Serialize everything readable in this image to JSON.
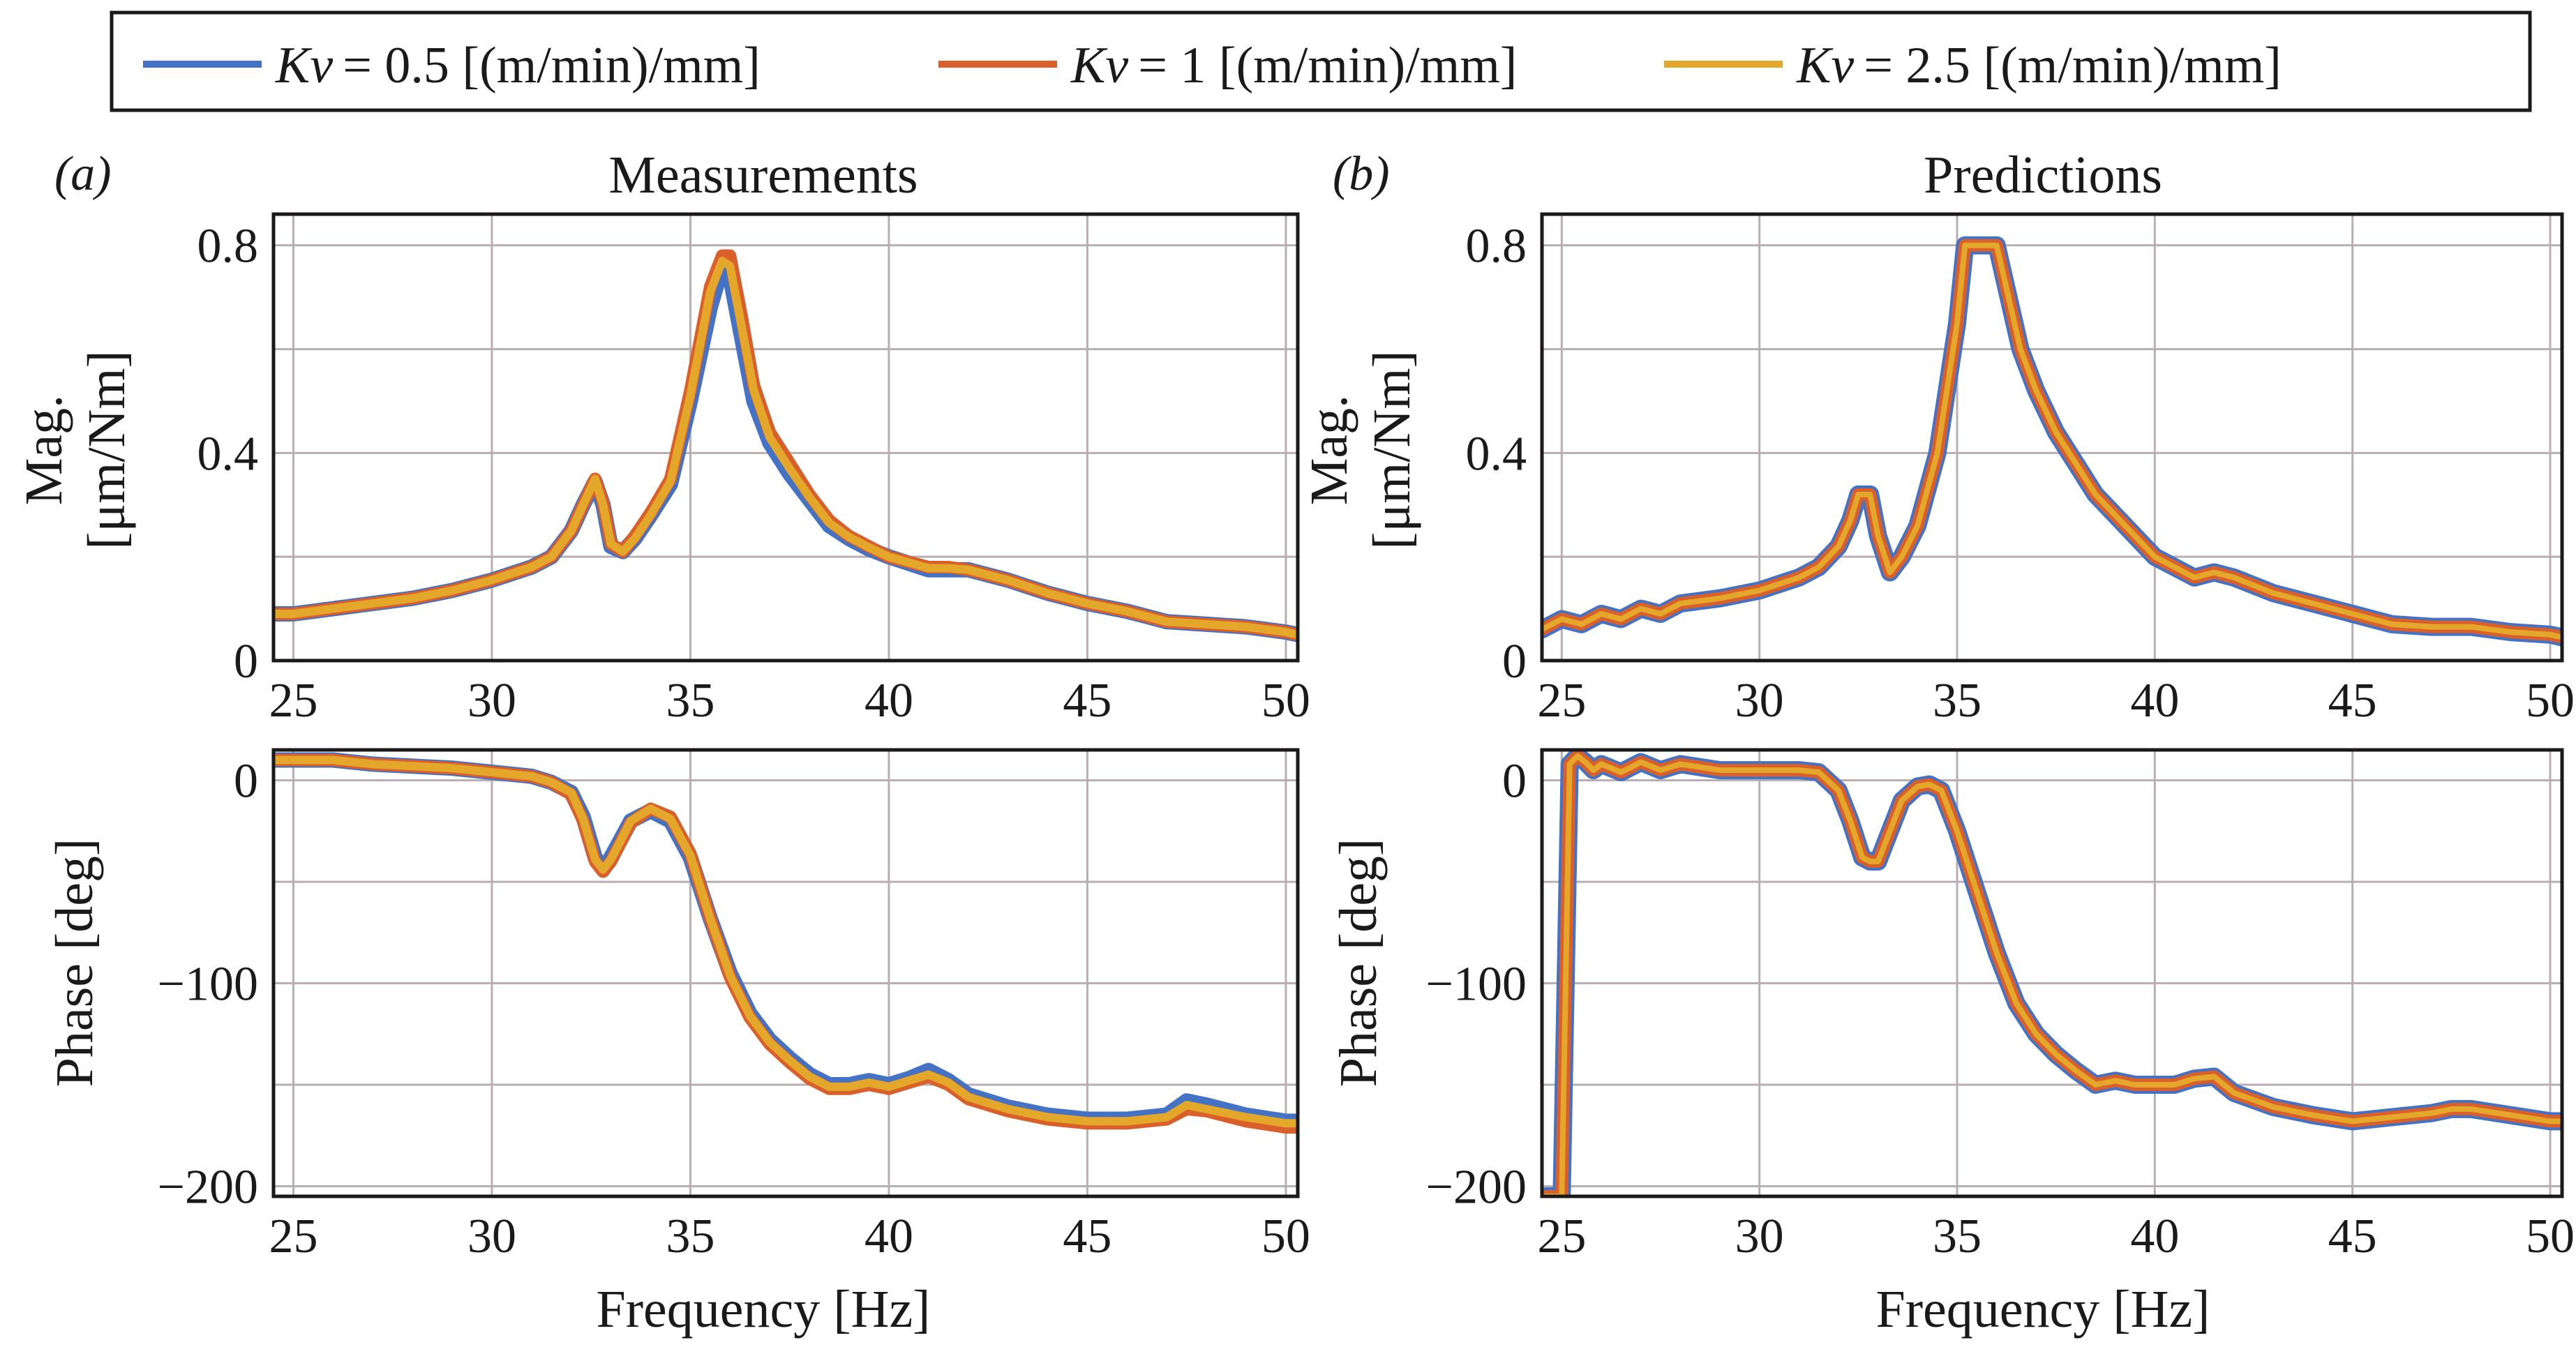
{
  "legend": [
    {
      "name": "Kv",
      "value_text": "= 0.5 [(m/min)/mm]",
      "color": "#4472c4"
    },
    {
      "name": "Kv",
      "value_text": "= 1 [(m/min)/mm]",
      "color": "#d95f2b"
    },
    {
      "name": "Kv",
      "value_text": "= 2.5 [(m/min)/mm]",
      "color": "#e3a82b"
    }
  ],
  "panels": {
    "a": {
      "label": "(a)",
      "title": "Measurements"
    },
    "b": {
      "label": "(b)",
      "title": "Predictions"
    }
  },
  "axes": {
    "mag_ylabel_1": "Mag.",
    "mag_ylabel_2": "[μm/Nm]",
    "phase_ylabel": "Phase [deg]",
    "xlabel": "Frequency [Hz]"
  },
  "chart_data": [
    {
      "id": "a-mag",
      "type": "line",
      "title": "Measurements",
      "xlabel": "",
      "ylabel": "Mag. [μm/Nm]",
      "xlim": [
        24.5,
        50.3
      ],
      "ylim": [
        0,
        0.86
      ],
      "xticks": [
        25,
        30,
        35,
        40,
        45,
        50
      ],
      "xtick_labels": [
        "25",
        "30",
        "35",
        "40",
        "45",
        "50"
      ],
      "yticks": [
        0,
        0.4,
        0.8
      ],
      "ytick_labels": [
        "0",
        "0.4",
        "0.8"
      ],
      "gridlines_y": [
        0,
        0.2,
        0.4,
        0.6,
        0.8
      ],
      "x": [
        24.5,
        25,
        26,
        27,
        28,
        29,
        30,
        31,
        31.5,
        32,
        32.3,
        32.6,
        32.8,
        33,
        33.3,
        33.6,
        34,
        34.5,
        35,
        35.5,
        35.8,
        36,
        36.3,
        36.6,
        37,
        37.5,
        38,
        38.5,
        39,
        39.5,
        40,
        41,
        41.5,
        42,
        43,
        44,
        45,
        46,
        47,
        48,
        49,
        50,
        50.3
      ],
      "series": [
        {
          "name": "Kv = 0.5",
          "color": "#4472c4",
          "values": [
            0.09,
            0.09,
            0.1,
            0.11,
            0.12,
            0.135,
            0.155,
            0.18,
            0.2,
            0.25,
            0.3,
            0.345,
            0.3,
            0.22,
            0.21,
            0.235,
            0.28,
            0.34,
            0.5,
            0.68,
            0.76,
            0.74,
            0.62,
            0.5,
            0.42,
            0.36,
            0.31,
            0.26,
            0.235,
            0.215,
            0.2,
            0.175,
            0.175,
            0.175,
            0.155,
            0.13,
            0.11,
            0.095,
            0.075,
            0.07,
            0.065,
            0.055,
            0.05
          ]
        },
        {
          "name": "Kv = 1",
          "color": "#d95f2b",
          "values": [
            0.09,
            0.09,
            0.1,
            0.11,
            0.12,
            0.135,
            0.155,
            0.18,
            0.2,
            0.25,
            0.3,
            0.35,
            0.305,
            0.225,
            0.21,
            0.24,
            0.285,
            0.35,
            0.52,
            0.72,
            0.78,
            0.78,
            0.66,
            0.53,
            0.44,
            0.38,
            0.32,
            0.27,
            0.24,
            0.22,
            0.2,
            0.18,
            0.18,
            0.175,
            0.155,
            0.13,
            0.11,
            0.095,
            0.075,
            0.07,
            0.065,
            0.055,
            0.05
          ]
        },
        {
          "name": "Kv = 2.5",
          "color": "#e3a82b",
          "values": [
            0.09,
            0.09,
            0.1,
            0.11,
            0.12,
            0.135,
            0.155,
            0.18,
            0.2,
            0.25,
            0.3,
            0.35,
            0.3,
            0.225,
            0.21,
            0.235,
            0.28,
            0.345,
            0.51,
            0.71,
            0.77,
            0.76,
            0.64,
            0.52,
            0.43,
            0.37,
            0.315,
            0.265,
            0.238,
            0.218,
            0.2,
            0.178,
            0.178,
            0.175,
            0.155,
            0.13,
            0.11,
            0.095,
            0.075,
            0.07,
            0.065,
            0.055,
            0.05
          ]
        }
      ]
    },
    {
      "id": "a-phase",
      "type": "line",
      "title": "",
      "xlabel": "Frequency [Hz]",
      "ylabel": "Phase [deg]",
      "xlim": [
        24.5,
        50.3
      ],
      "ylim": [
        -205,
        15
      ],
      "xticks": [
        25,
        30,
        35,
        40,
        45,
        50
      ],
      "xtick_labels": [
        "25",
        "30",
        "35",
        "40",
        "45",
        "50"
      ],
      "yticks": [
        -200,
        -100,
        0
      ],
      "ytick_labels": [
        "−200",
        "−100",
        "0"
      ],
      "gridlines_y": [
        -200,
        -150,
        -100,
        -50,
        0
      ],
      "x": [
        24.5,
        25,
        26,
        27,
        28,
        29,
        30,
        31,
        31.5,
        32,
        32.3,
        32.6,
        32.8,
        33,
        33.5,
        34,
        34.5,
        35,
        35.5,
        36,
        36.5,
        37,
        37.5,
        38,
        38.5,
        39,
        39.5,
        40,
        40.5,
        41,
        41.5,
        42,
        43,
        44,
        45,
        46,
        47,
        47.5,
        48,
        49,
        50,
        50.3
      ],
      "series": [
        {
          "name": "Kv = 0.5",
          "color": "#4472c4",
          "values": [
            10,
            10,
            10,
            8,
            7,
            6,
            4,
            2,
            -1,
            -6,
            -18,
            -38,
            -44,
            -38,
            -20,
            -15,
            -20,
            -38,
            -68,
            -95,
            -115,
            -128,
            -137,
            -145,
            -150,
            -150,
            -148,
            -150,
            -147,
            -143,
            -148,
            -155,
            -161,
            -165,
            -167,
            -167,
            -165,
            -158,
            -160,
            -165,
            -168,
            -168
          ]
        },
        {
          "name": "Kv = 1",
          "color": "#d95f2b",
          "values": [
            10,
            10,
            10,
            8,
            7,
            6,
            4,
            2,
            -1,
            -7,
            -20,
            -40,
            -45,
            -40,
            -21,
            -14,
            -18,
            -36,
            -68,
            -97,
            -117,
            -130,
            -139,
            -147,
            -152,
            -152,
            -150,
            -152,
            -149,
            -146,
            -150,
            -157,
            -163,
            -167,
            -169,
            -169,
            -167,
            -162,
            -163,
            -168,
            -171,
            -171
          ]
        },
        {
          "name": "Kv = 2.5",
          "color": "#e3a82b",
          "values": [
            10,
            10,
            10,
            8,
            7,
            6,
            4,
            2,
            -1,
            -6,
            -19,
            -39,
            -44,
            -39,
            -20,
            -14,
            -19,
            -37,
            -68,
            -96,
            -116,
            -129,
            -138,
            -146,
            -151,
            -151,
            -149,
            -151,
            -148,
            -145,
            -149,
            -156,
            -162,
            -166,
            -168,
            -168,
            -166,
            -160,
            -162,
            -166,
            -169,
            -169
          ]
        }
      ]
    },
    {
      "id": "b-mag",
      "type": "line",
      "title": "Predictions",
      "xlabel": "",
      "ylabel": "Mag. [μm/Nm]",
      "xlim": [
        24.5,
        50.3
      ],
      "ylim": [
        0,
        0.86
      ],
      "xticks": [
        25,
        30,
        35,
        40,
        45,
        50
      ],
      "xtick_labels": [
        "25",
        "30",
        "35",
        "40",
        "45",
        "50"
      ],
      "yticks": [
        0,
        0.4,
        0.8
      ],
      "ytick_labels": [
        "0",
        "0.4",
        "0.8"
      ],
      "gridlines_y": [
        0,
        0.2,
        0.4,
        0.6,
        0.8
      ],
      "x": [
        24.5,
        25,
        25.5,
        26,
        26.5,
        27,
        27.5,
        28,
        29,
        30,
        31,
        31.5,
        32,
        32.3,
        32.5,
        32.8,
        33,
        33.3,
        33.6,
        34,
        34.5,
        35,
        35.2,
        35.5,
        36,
        36.3,
        36.6,
        37,
        37.5,
        38,
        38.5,
        39,
        39.5,
        40,
        41,
        41.5,
        42,
        43,
        44,
        45,
        46,
        47,
        48,
        49,
        50,
        50.3
      ],
      "series": [
        {
          "name": "Kv = 0.5",
          "color": "#4472c4",
          "values": [
            0.06,
            0.08,
            0.07,
            0.09,
            0.08,
            0.1,
            0.09,
            0.11,
            0.12,
            0.135,
            0.16,
            0.18,
            0.22,
            0.27,
            0.32,
            0.32,
            0.24,
            0.17,
            0.2,
            0.26,
            0.4,
            0.65,
            0.8,
            0.8,
            0.8,
            0.7,
            0.6,
            0.52,
            0.44,
            0.38,
            0.32,
            0.28,
            0.24,
            0.2,
            0.16,
            0.17,
            0.16,
            0.13,
            0.11,
            0.09,
            0.07,
            0.065,
            0.065,
            0.055,
            0.05,
            0.045
          ]
        },
        {
          "name": "Kv = 1",
          "color": "#d95f2b",
          "values": [
            0.06,
            0.08,
            0.07,
            0.09,
            0.08,
            0.1,
            0.09,
            0.11,
            0.12,
            0.135,
            0.16,
            0.18,
            0.22,
            0.27,
            0.32,
            0.32,
            0.24,
            0.17,
            0.2,
            0.26,
            0.4,
            0.65,
            0.8,
            0.8,
            0.8,
            0.7,
            0.6,
            0.52,
            0.44,
            0.38,
            0.32,
            0.28,
            0.24,
            0.2,
            0.16,
            0.17,
            0.16,
            0.13,
            0.11,
            0.09,
            0.07,
            0.065,
            0.065,
            0.055,
            0.05,
            0.045
          ]
        },
        {
          "name": "Kv = 2.5",
          "color": "#e3a82b",
          "values": [
            0.06,
            0.08,
            0.07,
            0.09,
            0.08,
            0.1,
            0.09,
            0.11,
            0.12,
            0.135,
            0.16,
            0.18,
            0.22,
            0.27,
            0.32,
            0.32,
            0.24,
            0.17,
            0.2,
            0.26,
            0.4,
            0.65,
            0.8,
            0.8,
            0.8,
            0.7,
            0.6,
            0.52,
            0.44,
            0.38,
            0.32,
            0.28,
            0.24,
            0.2,
            0.16,
            0.17,
            0.16,
            0.13,
            0.11,
            0.09,
            0.07,
            0.065,
            0.065,
            0.055,
            0.05,
            0.045
          ]
        }
      ]
    },
    {
      "id": "b-phase",
      "type": "line",
      "title": "",
      "xlabel": "Frequency [Hz]",
      "ylabel": "Phase [deg]",
      "xlim": [
        24.5,
        50.3
      ],
      "ylim": [
        -205,
        15
      ],
      "xticks": [
        25,
        30,
        35,
        40,
        45,
        50
      ],
      "xtick_labels": [
        "25",
        "30",
        "35",
        "40",
        "45",
        "50"
      ],
      "yticks": [
        -200,
        -100,
        0
      ],
      "ytick_labels": [
        "−200",
        "−100",
        "0"
      ],
      "gridlines_y": [
        -200,
        -150,
        -100,
        -50,
        0
      ],
      "x": [
        24.6,
        24.75,
        25.0,
        25.2,
        25.4,
        25.6,
        25.8,
        26,
        26.5,
        27,
        27.5,
        28,
        29,
        30,
        31,
        31.5,
        32,
        32.3,
        32.6,
        32.8,
        33,
        33.3,
        33.6,
        34,
        34.3,
        34.6,
        35,
        35.5,
        36,
        36.5,
        37,
        37.5,
        38,
        38.5,
        39,
        39.5,
        40,
        40.5,
        41,
        41.5,
        42,
        43,
        44,
        45,
        46,
        47,
        47.5,
        48,
        49,
        50,
        50.3
      ],
      "series": [
        {
          "name": "Kv = 0.5",
          "color": "#4472c4",
          "values": [
            -205,
            -205,
            -205,
            8,
            12,
            9,
            5,
            8,
            4,
            9,
            5,
            8,
            5,
            5,
            5,
            4,
            -5,
            -20,
            -38,
            -40,
            -40,
            -25,
            -10,
            -3,
            -2,
            -5,
            -25,
            -55,
            -85,
            -110,
            -125,
            -135,
            -143,
            -150,
            -148,
            -150,
            -150,
            -150,
            -147,
            -146,
            -154,
            -161,
            -165,
            -168,
            -166,
            -164,
            -162,
            -162,
            -165,
            -168,
            -168
          ]
        },
        {
          "name": "Kv = 1",
          "color": "#d95f2b",
          "values": [
            -205,
            -205,
            -205,
            8,
            12,
            9,
            5,
            8,
            4,
            9,
            5,
            8,
            5,
            5,
            5,
            4,
            -5,
            -20,
            -38,
            -40,
            -40,
            -25,
            -10,
            -3,
            -2,
            -5,
            -25,
            -55,
            -85,
            -110,
            -125,
            -135,
            -143,
            -150,
            -148,
            -150,
            -150,
            -150,
            -147,
            -146,
            -154,
            -161,
            -165,
            -168,
            -166,
            -164,
            -162,
            -162,
            -165,
            -168,
            -168
          ]
        },
        {
          "name": "Kv = 2.5",
          "color": "#e3a82b",
          "values": [
            -205,
            -205,
            -205,
            8,
            12,
            9,
            5,
            8,
            4,
            9,
            5,
            8,
            5,
            5,
            5,
            4,
            -5,
            -20,
            -38,
            -40,
            -40,
            -25,
            -10,
            -3,
            -2,
            -5,
            -25,
            -55,
            -85,
            -110,
            -125,
            -135,
            -143,
            -150,
            -148,
            -150,
            -150,
            -150,
            -147,
            -146,
            -154,
            -161,
            -165,
            -168,
            -166,
            -164,
            -162,
            -162,
            -165,
            -168,
            -168
          ]
        }
      ]
    }
  ]
}
